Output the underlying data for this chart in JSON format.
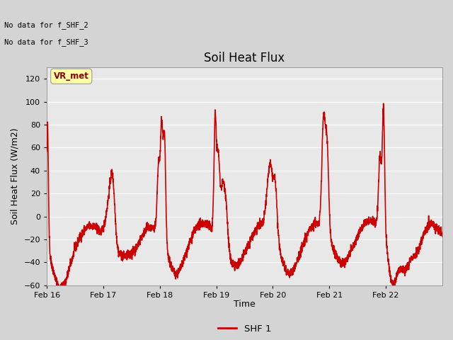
{
  "title": "Soil Heat Flux",
  "ylabel": "Soil Heat Flux (W/m2)",
  "xlabel": "Time",
  "ylim": [
    -60,
    130
  ],
  "yticks": [
    -60,
    -40,
    -20,
    0,
    20,
    40,
    60,
    80,
    100,
    120
  ],
  "line_color": "#cc0000",
  "line_width": 1.2,
  "bg_color": "#e0e0e0",
  "fig_bg_color": "#d8d8d8",
  "legend_label": "SHF 1",
  "legend_line_color": "#cc0000",
  "no_data_text1": "No data for f_SHF_2",
  "no_data_text2": "No data for f_SHF_3",
  "vr_met_label": "VR_met",
  "x_tick_labels": [
    "Feb 16",
    "Feb 17",
    "Feb 18",
    "Feb 19",
    "Feb 20",
    "Feb 21",
    "Feb 22"
  ],
  "x_tick_positions": [
    0,
    24,
    48,
    72,
    96,
    120,
    144
  ],
  "total_hours": 168,
  "title_fontsize": 12,
  "axis_fontsize": 9,
  "tick_fontsize": 8
}
